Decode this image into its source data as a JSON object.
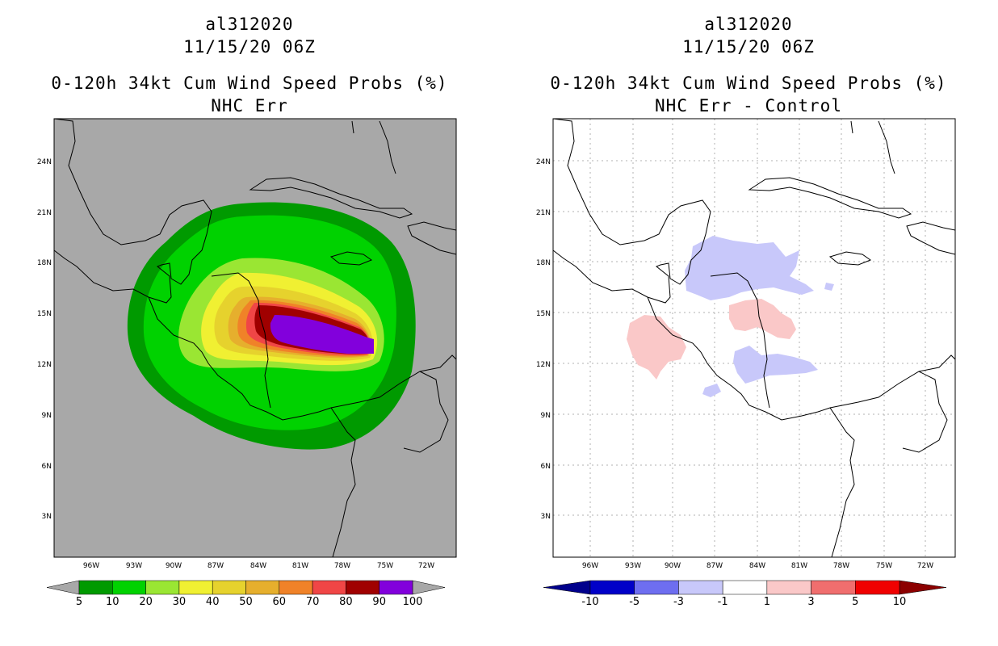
{
  "panels": [
    {
      "storm_id": "al312020",
      "datetime": "11/15/20 06Z",
      "product": "0-120h 34kt Cum Wind Speed Probs (%)",
      "subtitle": "NHC Err",
      "background_color": "#a8a8a8",
      "lat_labels": [
        "24N",
        "21N",
        "18N",
        "15N",
        "12N",
        "9N",
        "6N",
        "3N"
      ],
      "lon_labels": [
        "96W",
        "93W",
        "90W",
        "87W",
        "84W",
        "81W",
        "78W",
        "75W",
        "72W"
      ],
      "colorbar": {
        "colors": [
          "#009a00",
          "#00d200",
          "#9ae633",
          "#f0f032",
          "#e6d22d",
          "#e6af2d",
          "#f08228",
          "#f04646",
          "#a00000",
          "#8200dc"
        ],
        "end_colors": [
          "#a8a8a8",
          "#a8a8a8"
        ],
        "labels": [
          "5",
          "10",
          "20",
          "30",
          "40",
          "50",
          "60",
          "70",
          "80",
          "90",
          "100"
        ]
      }
    },
    {
      "storm_id": "al312020",
      "datetime": "11/15/20 06Z",
      "product": "0-120h 34kt Cum Wind Speed Probs (%)",
      "subtitle": "NHC Err - Control",
      "background_color": "#ffffff",
      "lat_labels": [
        "24N",
        "21N",
        "18N",
        "15N",
        "12N",
        "9N",
        "6N",
        "3N"
      ],
      "lon_labels": [
        "96W",
        "93W",
        "90W",
        "87W",
        "84W",
        "81W",
        "78W",
        "75W",
        "72W"
      ],
      "colorbar": {
        "colors": [
          "#0000c8",
          "#6e6ef0",
          "#c8c8fa",
          "#ffffff",
          "#fac8c8",
          "#f06e6e",
          "#f00000"
        ],
        "end_colors": [
          "#00008c",
          "#8c0000"
        ],
        "labels": [
          "-10",
          "-5",
          "-3",
          "-1",
          "1",
          "3",
          "5",
          "10"
        ]
      }
    }
  ]
}
